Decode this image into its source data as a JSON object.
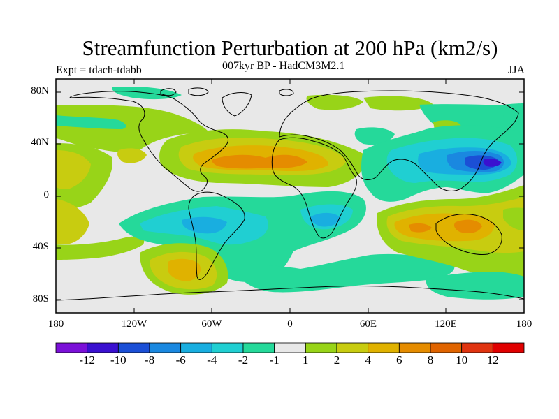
{
  "title": "Streamfunction Perturbation at 200 hPa (km2/s)",
  "subtitle": "007kyr BP - HadCM3M2.1",
  "experiment": "Expt = tdach-tdabb",
  "season": "JJA",
  "latitude_labels": [
    "80N",
    "40N",
    "0",
    "40S",
    "80S"
  ],
  "longitude_labels": [
    "180",
    "120W",
    "60W",
    "0",
    "60E",
    "120E",
    "180"
  ],
  "colorbar": {
    "colors": [
      "#7b10d8",
      "#3a10d0",
      "#1b4fd6",
      "#1a88e0",
      "#19aee0",
      "#20cfd2",
      "#25d99a",
      "#e8e8e8",
      "#98d418",
      "#c8cc10",
      "#e0b200",
      "#e58c00",
      "#e06400",
      "#e03410",
      "#e00000"
    ],
    "labels": [
      "-12",
      "-10",
      "-8",
      "-6",
      "-4",
      "-2",
      "-1",
      "1",
      "2",
      "4",
      "6",
      "8",
      "10",
      "12"
    ]
  },
  "chart_data": {
    "type": "heatmap",
    "variable": "Streamfunction Perturbation at 200 hPa",
    "units": "km2/s",
    "levels": [
      -12,
      -10,
      -8,
      -6,
      -4,
      -2,
      -1,
      1,
      2,
      4,
      6,
      8,
      10,
      12
    ],
    "lon_range": [
      -180,
      180
    ],
    "lat_range": [
      -90,
      90
    ]
  }
}
